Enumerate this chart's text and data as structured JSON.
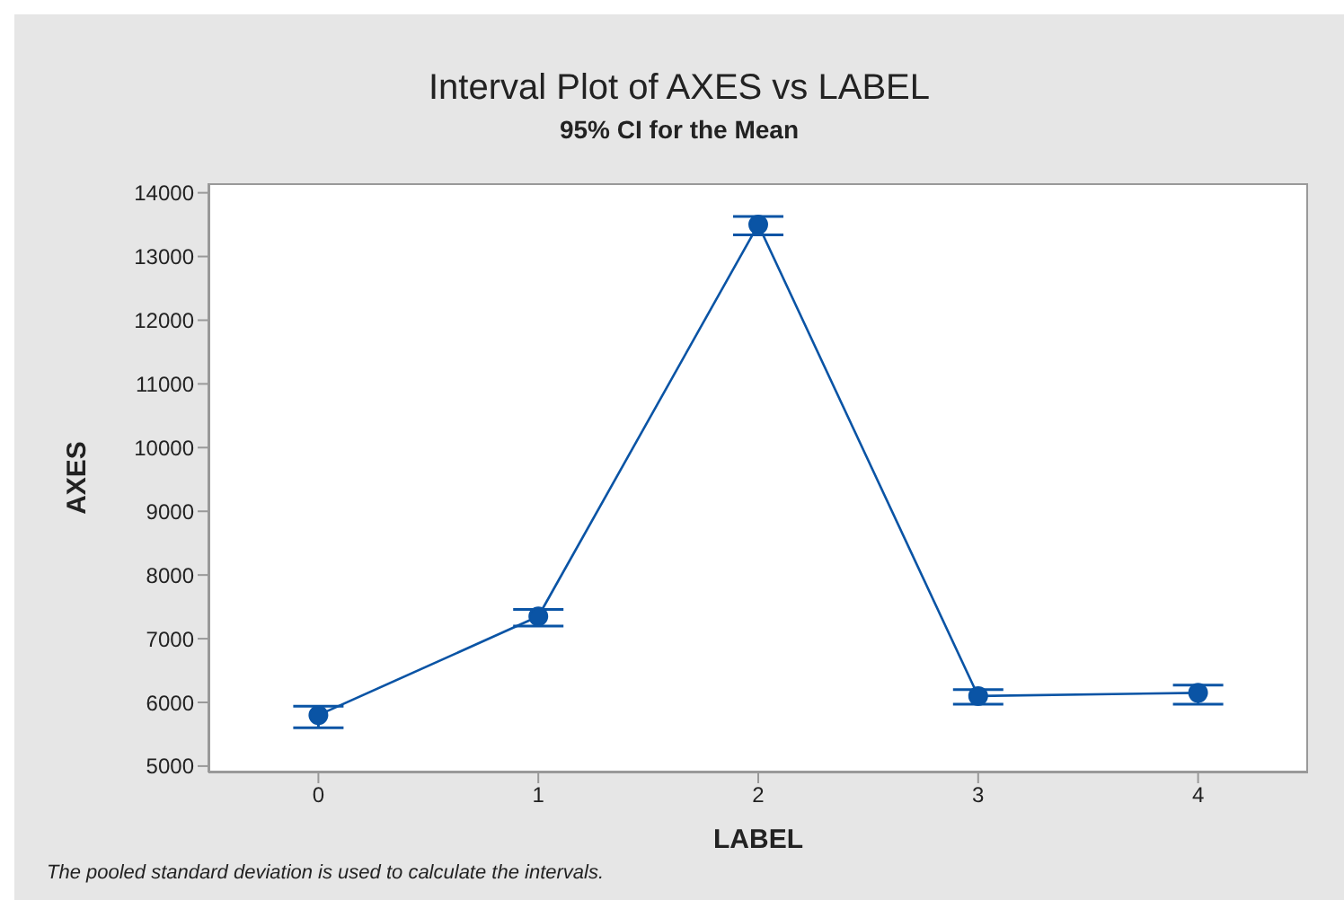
{
  "chart_data": {
    "type": "line",
    "title": "Interval Plot of AXES vs LABEL",
    "subtitle": "95% CI for the Mean",
    "xlabel": "LABEL",
    "ylabel": "AXES",
    "categories": [
      "0",
      "1",
      "2",
      "3",
      "4"
    ],
    "series": [
      {
        "color": "#0a54a5",
        "values": [
          5800,
          7350,
          13500,
          6100,
          6150
        ],
        "errors": [
          [
            5600,
            5940
          ],
          [
            7200,
            7460
          ],
          [
            13340,
            13630
          ],
          [
            5970,
            6200
          ],
          [
            5970,
            6270
          ]
        ]
      }
    ],
    "ylim": [
      4900,
      14150
    ],
    "yticks": [
      5000,
      6000,
      7000,
      8000,
      9000,
      10000,
      11000,
      12000,
      13000,
      14000
    ],
    "marker": "circle",
    "line_style": "solid",
    "annotations": [
      "The pooled standard deviation is used to calculate the intervals."
    ]
  }
}
